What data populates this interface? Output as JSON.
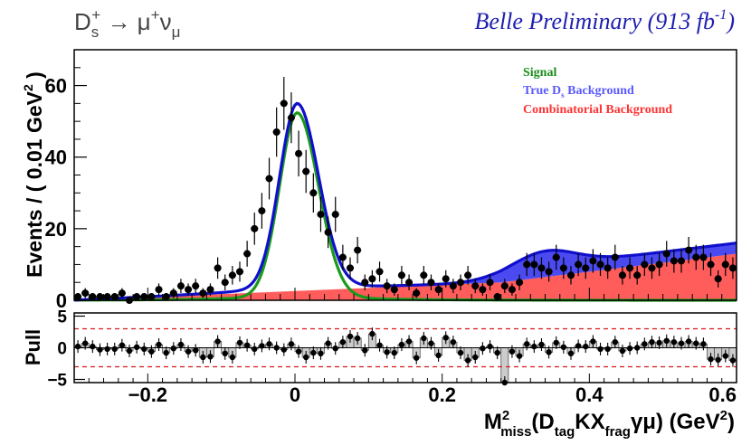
{
  "chart_data": {
    "type": "scatter",
    "process": "D_s^+ → μ^+ν_μ",
    "title": "Belle Preliminary (913 fb^-1)",
    "title_parts": {
      "main": "Belle Preliminary (913 fb",
      "sup": "-1",
      "close": ")"
    },
    "decay_label": {
      "particle": "D",
      "sub": "s",
      "sup": "+",
      "arrow": " → μ",
      "mu_sup": "+",
      "nu": "ν",
      "nu_sub": "μ"
    },
    "xlabel": "M²miss(D_tag KX_frag γμ) (GeV²)",
    "xlabel_parts": {
      "M": "M",
      "sup": "2",
      "sub_miss": "miss",
      "open": "(D",
      "sub_tag": "tag",
      "mid": "KX",
      "sub_frag": "frag",
      "close": "γμ) (GeV",
      "sup2": "2",
      "end": ")"
    },
    "ylabel": "Events / ( 0.01 GeV² )",
    "ylabel_parts": {
      "main": "Events / ( 0.01 GeV",
      "sup": "2",
      "end": " )"
    },
    "xlim": [
      -0.3,
      0.6
    ],
    "ylim": [
      0,
      70
    ],
    "xticks": [
      -0.2,
      0,
      0.2,
      0.4,
      0.6
    ],
    "xtick_labels": [
      "−0.2",
      "0",
      "0.2",
      "0.4",
      "0.6"
    ],
    "yticks": [
      0,
      20,
      40,
      60
    ],
    "ytick_labels": [
      "0",
      "20",
      "40",
      "60"
    ],
    "legend": [
      {
        "name": "Signal",
        "color": "#1a8c1a"
      },
      {
        "name": "True D",
        "sub": "s",
        "suffix": " Background",
        "color": "#5a5aff"
      },
      {
        "name": "Combinatorial Background",
        "color": "#ff3333"
      }
    ],
    "legend_position": "top-right",
    "colors": {
      "signal": "#1a9a1a",
      "total": "#1010cc",
      "true_ds": "#4a4af0",
      "combinatorial": "#ff5c5c",
      "data": "#000000",
      "pull_band": "#d61a1a"
    },
    "data": {
      "x": [
        -0.295,
        -0.285,
        -0.275,
        -0.265,
        -0.255,
        -0.245,
        -0.235,
        -0.225,
        -0.215,
        -0.205,
        -0.195,
        -0.185,
        -0.175,
        -0.165,
        -0.155,
        -0.145,
        -0.135,
        -0.125,
        -0.115,
        -0.105,
        -0.095,
        -0.085,
        -0.075,
        -0.065,
        -0.055,
        -0.045,
        -0.035,
        -0.025,
        -0.015,
        -0.005,
        0.005,
        0.015,
        0.025,
        0.035,
        0.045,
        0.055,
        0.065,
        0.075,
        0.085,
        0.095,
        0.105,
        0.115,
        0.125,
        0.135,
        0.145,
        0.155,
        0.165,
        0.175,
        0.185,
        0.195,
        0.205,
        0.215,
        0.225,
        0.235,
        0.245,
        0.255,
        0.265,
        0.275,
        0.285,
        0.295,
        0.305,
        0.315,
        0.325,
        0.335,
        0.345,
        0.355,
        0.365,
        0.375,
        0.385,
        0.395,
        0.405,
        0.415,
        0.425,
        0.435,
        0.445,
        0.455,
        0.465,
        0.475,
        0.485,
        0.495,
        0.505,
        0.515,
        0.525,
        0.535,
        0.545,
        0.555,
        0.565,
        0.575,
        0.585,
        0.595
      ],
      "y": [
        1,
        2,
        1,
        1,
        1,
        1,
        2,
        0,
        1,
        1,
        1,
        3,
        1,
        2,
        4,
        3,
        4,
        2,
        3,
        9,
        5,
        7,
        8,
        13,
        20,
        25,
        34,
        47,
        55,
        51,
        41,
        36,
        30,
        24,
        19,
        24,
        12,
        9,
        14,
        5,
        6,
        8,
        4,
        3,
        7,
        5,
        2,
        7,
        5,
        3,
        6,
        4,
        5,
        7,
        4,
        3,
        5,
        1,
        4,
        3,
        5,
        10,
        10,
        9,
        8,
        12,
        9,
        7,
        10,
        9,
        11,
        10,
        9,
        12,
        7,
        9,
        7,
        10,
        9,
        10,
        13,
        11,
        11,
        14,
        12,
        12,
        10,
        6,
        10,
        9
      ],
      "err": [
        1.0,
        1.4,
        1.0,
        1.0,
        1.0,
        1.0,
        1.4,
        1.0,
        1.0,
        1.0,
        1.0,
        1.7,
        1.0,
        1.4,
        2.0,
        1.7,
        2.0,
        1.4,
        1.7,
        3.0,
        2.2,
        2.6,
        2.8,
        3.6,
        4.5,
        5.0,
        5.8,
        6.9,
        7.4,
        7.1,
        6.4,
        6.0,
        5.5,
        4.9,
        4.4,
        4.9,
        3.5,
        3.0,
        3.7,
        2.2,
        2.4,
        2.8,
        2.0,
        1.7,
        2.6,
        2.2,
        1.4,
        2.6,
        2.2,
        1.7,
        2.4,
        2.0,
        2.2,
        2.6,
        2.0,
        1.7,
        2.2,
        1.0,
        2.0,
        1.7,
        2.2,
        3.2,
        3.2,
        3.0,
        2.8,
        3.5,
        3.0,
        2.6,
        3.2,
        3.0,
        3.3,
        3.2,
        3.0,
        3.5,
        2.6,
        3.0,
        2.6,
        3.2,
        3.0,
        3.2,
        3.6,
        3.3,
        3.3,
        3.7,
        3.5,
        3.5,
        3.2,
        2.4,
        3.2,
        3.0
      ]
    },
    "fit": {
      "signal": {
        "amplitude": 51,
        "mean": 0.003,
        "sigma_left": 0.024,
        "sigma_right": 0.029,
        "tail_amplitude": 1.4,
        "tail_width": 0.09
      },
      "combinatorial": {
        "x": [
          -0.3,
          0.28,
          0.6
        ],
        "y": [
          0.0,
          5.0,
          13.0
        ]
      },
      "true_ds": {
        "mean": 0.33,
        "width": 0.045,
        "amplitude": 5.5,
        "plateau": 3.0
      }
    },
    "pull": {
      "ylabel": "Pull",
      "ylim": [
        -5.5,
        5.5
      ],
      "yticks": [
        -5,
        0,
        5
      ],
      "ytick_labels": [
        "−5",
        "0",
        "5"
      ],
      "bands": [
        -3,
        3
      ],
      "values": [
        0.2,
        0.7,
        0.2,
        -0.3,
        -0.2,
        -0.2,
        0.4,
        -0.5,
        0.1,
        -0.2,
        -0.6,
        0.5,
        -0.8,
        -0.1,
        0.5,
        -0.6,
        -0.4,
        -1.5,
        -1.4,
        1.0,
        -0.9,
        -1.5,
        0.8,
        0.4,
        -0.2,
        0.3,
        0.6,
        0.0,
        -0.3,
        0.6,
        -0.6,
        -1.5,
        -0.8,
        -0.9,
        0.7,
        -0.1,
        0.9,
        1.8,
        1.5,
        -0.4,
        2.2,
        0.4,
        -0.7,
        -0.8,
        0.5,
        1.0,
        -1.6,
        1.5,
        0.7,
        -1.2,
        1.6,
        0.9,
        -0.8,
        -2.0,
        -1.5,
        -0.1,
        0.2,
        -0.8,
        -5.5,
        -0.6,
        -1.3,
        0.6,
        0.2,
        0.5,
        -0.7,
        0.8,
        0.1,
        -0.9,
        0.3,
        0.2,
        1.0,
        -0.2,
        -0.2,
        0.9,
        -0.5,
        -0.1,
        0.0,
        0.6,
        0.9,
        0.8,
        1.1,
        0.9,
        0.7,
        1.0,
        0.7,
        0.6,
        -1.8,
        -1.9,
        -1.3,
        -2.0
      ],
      "err": [
        1,
        1,
        1,
        1,
        1,
        1,
        1,
        1,
        1,
        1,
        1,
        1,
        1,
        1,
        1,
        1,
        1,
        1,
        1,
        1,
        1,
        1,
        1,
        1,
        1,
        1,
        1,
        1,
        1,
        1,
        1,
        1,
        1,
        1,
        1,
        1,
        1,
        1,
        1,
        1,
        1,
        1,
        1,
        1,
        1,
        1,
        1,
        1,
        1,
        1,
        1,
        1,
        1,
        1,
        1,
        1,
        1,
        1,
        1,
        1,
        1,
        1,
        1,
        1,
        1,
        1,
        1,
        1,
        1,
        1,
        1,
        1,
        1,
        1,
        1,
        1,
        1,
        1,
        1,
        1,
        1,
        1,
        1,
        1,
        1,
        1,
        1,
        1,
        1,
        1
      ]
    }
  }
}
